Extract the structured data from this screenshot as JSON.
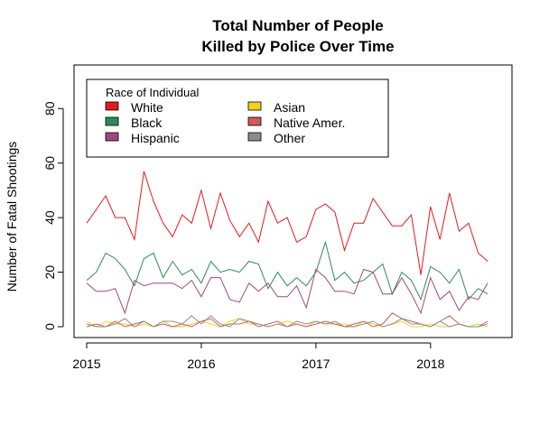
{
  "chart_data": {
    "type": "line",
    "title": [
      "Total Number of People",
      "Killed by Police Over Time"
    ],
    "xlabel": "",
    "ylabel": "Number of Fatal Shootings",
    "xlim": [
      2015,
      2018.6
    ],
    "ylim": [
      0,
      92
    ],
    "x_ticks": [
      "2015",
      "2016",
      "2017",
      "2018"
    ],
    "y_ticks": [
      "0",
      "20",
      "40",
      "60",
      "80"
    ],
    "x_start": 2015,
    "x_step": 0.0833,
    "legend": {
      "title": "Race of Individual",
      "position": "top-left",
      "columns": 2
    },
    "series": [
      {
        "name": "White",
        "color": "#E31A1C",
        "values": [
          38,
          43,
          48,
          40,
          40,
          32,
          57,
          46,
          38,
          33,
          41,
          38,
          50,
          36,
          49,
          39,
          33,
          38,
          31,
          46,
          38,
          40,
          31,
          33,
          43,
          45,
          42,
          28,
          38,
          38,
          47,
          42,
          37,
          37,
          41,
          19,
          44,
          32,
          49,
          35,
          38,
          27,
          24
        ]
      },
      {
        "name": "Black",
        "color": "#2E8B57",
        "values": [
          17,
          20,
          27,
          25,
          21,
          15,
          25,
          27,
          18,
          24,
          19,
          21,
          16,
          24,
          20,
          21,
          20,
          24,
          23,
          14,
          20,
          15,
          18,
          15,
          20,
          31,
          17,
          20,
          16,
          17,
          20,
          23,
          12,
          20,
          17,
          10,
          22,
          20,
          16,
          21,
          10,
          14,
          12
        ]
      },
      {
        "name": "Hispanic",
        "color": "#A1477E",
        "values": [
          16,
          13,
          13,
          14,
          5,
          17,
          15,
          16,
          16,
          16,
          14,
          17,
          11,
          18,
          18,
          10,
          9,
          16,
          13,
          16,
          11,
          11,
          15,
          7,
          21,
          18,
          13,
          13,
          12,
          21,
          20,
          12,
          12,
          18,
          12,
          5,
          18,
          10,
          13,
          6,
          11,
          10,
          16
        ]
      },
      {
        "name": "Asian",
        "color": "#F2D21B",
        "values": [
          2,
          0,
          2,
          1,
          1,
          0,
          1,
          0,
          2,
          0,
          0,
          1,
          2,
          1,
          0,
          2,
          3,
          1,
          1,
          0,
          1,
          2,
          1,
          0,
          2,
          1,
          1,
          1,
          0,
          2,
          1,
          0,
          1,
          2,
          0,
          0,
          1,
          0,
          0,
          1,
          0,
          1,
          0
        ]
      },
      {
        "name": "Native Amer.",
        "color": "#CD5C5C",
        "values": [
          0,
          1,
          0,
          2,
          0,
          1,
          2,
          0,
          1,
          0,
          1,
          0,
          2,
          3,
          0,
          1,
          1,
          2,
          0,
          1,
          2,
          0,
          1,
          0,
          1,
          2,
          1,
          0,
          1,
          2,
          0,
          1,
          5,
          3,
          2,
          1,
          0,
          2,
          4,
          1,
          0,
          0,
          2
        ]
      },
      {
        "name": "Other",
        "color": "#8C8C8C",
        "values": [
          1,
          0,
          0,
          1,
          3,
          0,
          2,
          0,
          2,
          2,
          1,
          4,
          1,
          4,
          1,
          0,
          3,
          2,
          1,
          0,
          1,
          0,
          2,
          1,
          2,
          1,
          2,
          0,
          0,
          1,
          2,
          0,
          1,
          3,
          1,
          1,
          0,
          2,
          0,
          1,
          0,
          0,
          1
        ]
      }
    ]
  }
}
